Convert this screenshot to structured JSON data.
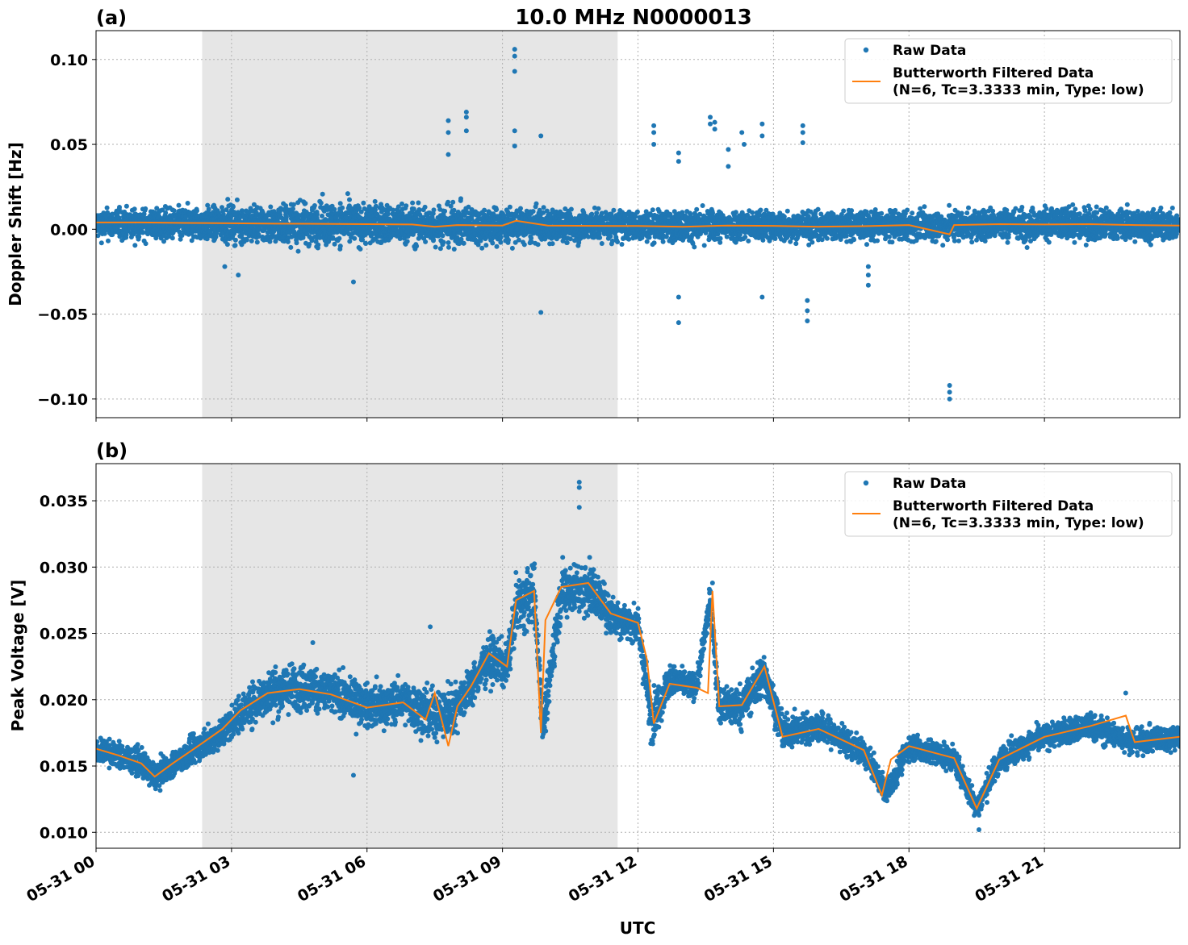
{
  "figure": {
    "title": "10.0 MHz N0000013",
    "xlabel": "UTC"
  },
  "colors": {
    "raw": "#1f77b4",
    "filtered": "#ff7f0e",
    "shade": "#e6e6e6",
    "grid": "#b0b0b0"
  },
  "legend": {
    "raw_label": "Raw Data",
    "filtered_label_line1": "Butterworth Filtered Data",
    "filtered_label_line2": "(N=6, Tc=3.3333 min, Type: low)"
  },
  "chart_data": [
    {
      "panel": "(a)",
      "type": "scatter",
      "ylabel": "Doppler Shift [Hz]",
      "xlim_hours": [
        0,
        24
      ],
      "ylim": [
        -0.111,
        0.117
      ],
      "yticks": [
        -0.1,
        -0.05,
        0.0,
        0.05,
        0.1
      ],
      "ytick_labels": [
        "−0.10",
        "−0.05",
        "0.00",
        "0.05",
        "0.10"
      ],
      "xticks_hours": [
        0,
        3,
        6,
        9,
        12,
        15,
        18,
        21
      ],
      "xtick_labels": [
        "05-31 00",
        "05-31 03",
        "05-31 06",
        "05-31 09",
        "05-31 12",
        "05-31 15",
        "05-31 18",
        "05-31 21"
      ],
      "shaded_hours": [
        2.35,
        11.55
      ],
      "raw_band": [
        {
          "x": 0,
          "center": 0.003,
          "half_width": 0.011
        },
        {
          "x": 2,
          "center": 0.003,
          "half_width": 0.012
        },
        {
          "x": 3.5,
          "center": 0.003,
          "half_width": 0.014
        },
        {
          "x": 5,
          "center": 0.003,
          "half_width": 0.016
        },
        {
          "x": 6.5,
          "center": 0.003,
          "half_width": 0.015
        },
        {
          "x": 8,
          "center": 0.002,
          "half_width": 0.015
        },
        {
          "x": 9.5,
          "center": 0.002,
          "half_width": 0.013
        },
        {
          "x": 11,
          "center": 0.002,
          "half_width": 0.012
        },
        {
          "x": 12.5,
          "center": 0.002,
          "half_width": 0.011
        },
        {
          "x": 14,
          "center": 0.002,
          "half_width": 0.012
        },
        {
          "x": 16,
          "center": 0.002,
          "half_width": 0.011
        },
        {
          "x": 18,
          "center": 0.002,
          "half_width": 0.011
        },
        {
          "x": 20,
          "center": 0.003,
          "half_width": 0.012
        },
        {
          "x": 22,
          "center": 0.003,
          "half_width": 0.012
        },
        {
          "x": 24,
          "center": 0.002,
          "half_width": 0.011
        }
      ],
      "raw_outliers": [
        {
          "x": 9.27,
          "y": 0.106
        },
        {
          "x": 9.27,
          "y": 0.102
        },
        {
          "x": 9.27,
          "y": 0.093
        },
        {
          "x": 9.27,
          "y": 0.058
        },
        {
          "x": 9.27,
          "y": 0.049
        },
        {
          "x": 8.2,
          "y": 0.069
        },
        {
          "x": 8.2,
          "y": 0.066
        },
        {
          "x": 8.2,
          "y": 0.058
        },
        {
          "x": 7.8,
          "y": 0.064
        },
        {
          "x": 7.8,
          "y": 0.057
        },
        {
          "x": 7.8,
          "y": 0.044
        },
        {
          "x": 9.85,
          "y": 0.055
        },
        {
          "x": 9.85,
          "y": -0.049
        },
        {
          "x": 12.35,
          "y": 0.061
        },
        {
          "x": 12.35,
          "y": 0.057
        },
        {
          "x": 12.35,
          "y": 0.05
        },
        {
          "x": 12.9,
          "y": 0.045
        },
        {
          "x": 12.9,
          "y": 0.04
        },
        {
          "x": 12.9,
          "y": -0.04
        },
        {
          "x": 12.9,
          "y": -0.055
        },
        {
          "x": 13.6,
          "y": 0.066
        },
        {
          "x": 13.6,
          "y": 0.062
        },
        {
          "x": 13.7,
          "y": 0.063
        },
        {
          "x": 13.7,
          "y": 0.059
        },
        {
          "x": 14.0,
          "y": 0.047
        },
        {
          "x": 14.0,
          "y": 0.037
        },
        {
          "x": 14.3,
          "y": 0.057
        },
        {
          "x": 14.35,
          "y": 0.05
        },
        {
          "x": 14.75,
          "y": 0.062
        },
        {
          "x": 14.75,
          "y": 0.055
        },
        {
          "x": 14.75,
          "y": -0.04
        },
        {
          "x": 15.65,
          "y": 0.061
        },
        {
          "x": 15.65,
          "y": 0.057
        },
        {
          "x": 15.65,
          "y": 0.051
        },
        {
          "x": 15.75,
          "y": -0.042
        },
        {
          "x": 15.75,
          "y": -0.048
        },
        {
          "x": 15.75,
          "y": -0.054
        },
        {
          "x": 17.1,
          "y": -0.022
        },
        {
          "x": 17.1,
          "y": -0.027
        },
        {
          "x": 17.1,
          "y": -0.033
        },
        {
          "x": 18.9,
          "y": -0.092
        },
        {
          "x": 18.9,
          "y": -0.096
        },
        {
          "x": 18.9,
          "y": -0.1
        },
        {
          "x": 2.85,
          "y": -0.022
        },
        {
          "x": 3.15,
          "y": -0.027
        },
        {
          "x": 5.7,
          "y": -0.031
        }
      ],
      "filtered": {
        "x": [
          0,
          1,
          2,
          3,
          4,
          5,
          6,
          7,
          7.5,
          8,
          9,
          9.3,
          10,
          11,
          12,
          13,
          14,
          15,
          16,
          17,
          18,
          18.9,
          19,
          20,
          21,
          22,
          23,
          24
        ],
        "y": [
          0.004,
          0.004,
          0.0037,
          0.0035,
          0.0033,
          0.0032,
          0.003,
          0.0028,
          0.0015,
          0.0025,
          0.0022,
          0.005,
          0.0022,
          0.002,
          0.0019,
          0.0015,
          0.0022,
          0.002,
          0.0015,
          0.0018,
          0.0025,
          -0.003,
          0.0025,
          0.003,
          0.0028,
          0.003,
          0.0025,
          0.0022
        ]
      }
    },
    {
      "panel": "(b)",
      "type": "scatter",
      "ylabel": "Peak Voltage [V]",
      "xlim_hours": [
        0,
        24
      ],
      "ylim": [
        0.0088,
        0.0378
      ],
      "yticks": [
        0.01,
        0.015,
        0.02,
        0.025,
        0.03,
        0.035
      ],
      "ytick_labels": [
        "0.010",
        "0.015",
        "0.020",
        "0.025",
        "0.030",
        "0.035"
      ],
      "xticks_hours": [
        0,
        3,
        6,
        9,
        12,
        15,
        18,
        21
      ],
      "xtick_labels": [
        "05-31 00",
        "05-31 03",
        "05-31 06",
        "05-31 09",
        "05-31 12",
        "05-31 15",
        "05-31 18",
        "05-31 21"
      ],
      "shaded_hours": [
        2.35,
        11.55
      ],
      "raw_band": [
        {
          "x": 0,
          "center": 0.0162,
          "half_width": 0.0012
        },
        {
          "x": 0.5,
          "center": 0.0158,
          "half_width": 0.0012
        },
        {
          "x": 1.0,
          "center": 0.0152,
          "half_width": 0.0013
        },
        {
          "x": 1.3,
          "center": 0.0142,
          "half_width": 0.0013
        },
        {
          "x": 1.7,
          "center": 0.0152,
          "half_width": 0.0012
        },
        {
          "x": 2.3,
          "center": 0.0165,
          "half_width": 0.0013
        },
        {
          "x": 2.8,
          "center": 0.0175,
          "half_width": 0.0015
        },
        {
          "x": 3.2,
          "center": 0.019,
          "half_width": 0.0018
        },
        {
          "x": 3.8,
          "center": 0.0205,
          "half_width": 0.0022
        },
        {
          "x": 4.5,
          "center": 0.021,
          "half_width": 0.0023
        },
        {
          "x": 5.2,
          "center": 0.0205,
          "half_width": 0.002
        },
        {
          "x": 6.0,
          "center": 0.0195,
          "half_width": 0.002
        },
        {
          "x": 6.8,
          "center": 0.0198,
          "half_width": 0.002
        },
        {
          "x": 7.3,
          "center": 0.019,
          "half_width": 0.0025
        },
        {
          "x": 7.8,
          "center": 0.019,
          "half_width": 0.0025
        },
        {
          "x": 8.3,
          "center": 0.021,
          "half_width": 0.0018
        },
        {
          "x": 8.7,
          "center": 0.0232,
          "half_width": 0.0022
        },
        {
          "x": 9.1,
          "center": 0.0225,
          "half_width": 0.002
        },
        {
          "x": 9.3,
          "center": 0.027,
          "half_width": 0.0025
        },
        {
          "x": 9.7,
          "center": 0.028,
          "half_width": 0.0028
        },
        {
          "x": 9.9,
          "center": 0.018,
          "half_width": 0.002
        },
        {
          "x": 10.3,
          "center": 0.0282,
          "half_width": 0.0025
        },
        {
          "x": 10.9,
          "center": 0.0285,
          "half_width": 0.0025
        },
        {
          "x": 11.4,
          "center": 0.0265,
          "half_width": 0.002
        },
        {
          "x": 12.0,
          "center": 0.0255,
          "half_width": 0.0015
        },
        {
          "x": 12.3,
          "center": 0.0185,
          "half_width": 0.0025
        },
        {
          "x": 12.7,
          "center": 0.0215,
          "half_width": 0.0015
        },
        {
          "x": 13.3,
          "center": 0.021,
          "half_width": 0.0012
        },
        {
          "x": 13.6,
          "center": 0.0275,
          "half_width": 0.0012
        },
        {
          "x": 13.8,
          "center": 0.0195,
          "half_width": 0.002
        },
        {
          "x": 14.3,
          "center": 0.0195,
          "half_width": 0.002
        },
        {
          "x": 14.8,
          "center": 0.022,
          "half_width": 0.002
        },
        {
          "x": 15.2,
          "center": 0.0175,
          "half_width": 0.0015
        },
        {
          "x": 16.0,
          "center": 0.018,
          "half_width": 0.0015
        },
        {
          "x": 17.0,
          "center": 0.016,
          "half_width": 0.0012
        },
        {
          "x": 17.5,
          "center": 0.013,
          "half_width": 0.0012
        },
        {
          "x": 18.0,
          "center": 0.0165,
          "half_width": 0.0012
        },
        {
          "x": 19.0,
          "center": 0.0155,
          "half_width": 0.0012
        },
        {
          "x": 19.5,
          "center": 0.0118,
          "half_width": 0.0012
        },
        {
          "x": 20.0,
          "center": 0.0155,
          "half_width": 0.0012
        },
        {
          "x": 21.0,
          "center": 0.0172,
          "half_width": 0.0012
        },
        {
          "x": 22.0,
          "center": 0.018,
          "half_width": 0.0013
        },
        {
          "x": 23.0,
          "center": 0.0168,
          "half_width": 0.0012
        },
        {
          "x": 24.0,
          "center": 0.0172,
          "half_width": 0.0012
        }
      ],
      "raw_outliers": [
        {
          "x": 10.7,
          "y": 0.0364
        },
        {
          "x": 10.7,
          "y": 0.036
        },
        {
          "x": 10.7,
          "y": 0.0345
        },
        {
          "x": 13.65,
          "y": 0.0288
        },
        {
          "x": 7.4,
          "y": 0.0255
        },
        {
          "x": 19.55,
          "y": 0.0102
        },
        {
          "x": 22.8,
          "y": 0.0205
        },
        {
          "x": 4.8,
          "y": 0.0243
        },
        {
          "x": 5.7,
          "y": 0.0143
        }
      ],
      "filtered": {
        "x": [
          0,
          0.5,
          1.0,
          1.3,
          1.7,
          2.3,
          2.8,
          3.2,
          3.8,
          4.5,
          5.2,
          6.0,
          6.8,
          7.3,
          7.5,
          7.8,
          8.0,
          8.3,
          8.7,
          9.1,
          9.3,
          9.7,
          9.85,
          9.95,
          10.3,
          10.9,
          11.4,
          12.0,
          12.2,
          12.35,
          12.7,
          13.3,
          13.55,
          13.65,
          13.8,
          14.3,
          14.8,
          15.2,
          16.0,
          17.0,
          17.4,
          17.6,
          18.0,
          19.0,
          19.5,
          20.0,
          21.0,
          22.0,
          22.8,
          23.0,
          24.0
        ],
        "y": [
          0.0163,
          0.0158,
          0.0152,
          0.0142,
          0.0152,
          0.0166,
          0.0178,
          0.0192,
          0.0205,
          0.0208,
          0.0204,
          0.0194,
          0.0198,
          0.0185,
          0.0205,
          0.0165,
          0.0195,
          0.021,
          0.0235,
          0.0225,
          0.0275,
          0.0282,
          0.0175,
          0.026,
          0.0285,
          0.0288,
          0.0265,
          0.0258,
          0.023,
          0.0182,
          0.0212,
          0.0209,
          0.0205,
          0.0282,
          0.0195,
          0.0196,
          0.0225,
          0.0172,
          0.0178,
          0.0162,
          0.0128,
          0.0155,
          0.0165,
          0.0156,
          0.0118,
          0.0155,
          0.0172,
          0.018,
          0.0188,
          0.0168,
          0.0172
        ]
      }
    }
  ]
}
